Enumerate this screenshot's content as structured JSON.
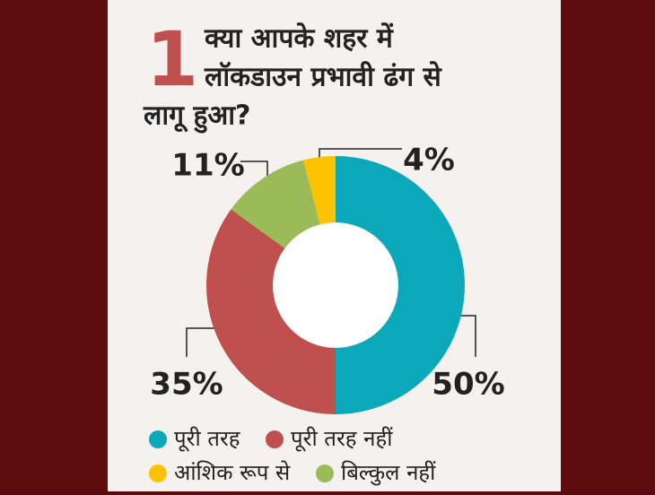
{
  "chart_data": {
    "type": "donut",
    "title_number": "1",
    "title_lines": [
      "क्या आपके शहर में",
      "लॉकडाउन प्रभावी ढंग से",
      "लागू हुआ?"
    ],
    "categories": [
      "पूरी तरह",
      "पूरी तरह नहीं",
      "बिल्कुल नहीं",
      "आंशिक रूप से"
    ],
    "values": [
      50,
      35,
      11,
      4
    ],
    "value_labels": [
      "50%",
      "35%",
      "11%",
      "4%"
    ],
    "colors": [
      "#0aa8b8",
      "#c0504d",
      "#9bbb59",
      "#fdc300"
    ]
  }
}
